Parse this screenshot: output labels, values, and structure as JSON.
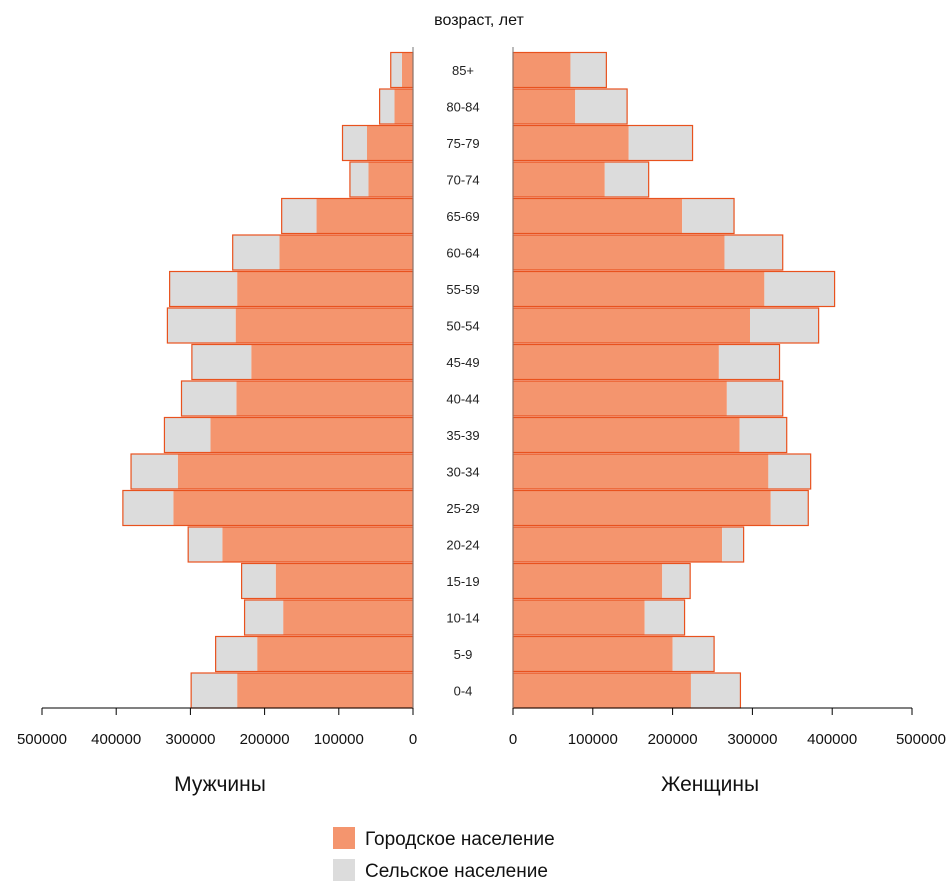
{
  "chart_data": {
    "type": "bar",
    "title": "возраст, лет",
    "categories": [
      "0-4",
      "5-9",
      "10-14",
      "15-19",
      "20-24",
      "25-29",
      "30-34",
      "35-39",
      "40-44",
      "45-49",
      "50-54",
      "55-59",
      "60-64",
      "65-69",
      "70-74",
      "75-79",
      "80-84",
      "85+"
    ],
    "panels": [
      {
        "label": "Мужчины",
        "xlim": [
          500000,
          0
        ],
        "ticks": [
          "500000",
          "400000",
          "300000",
          "200000",
          "100000",
          "0"
        ],
        "series": [
          {
            "name": "Городское население",
            "values": [
              237000,
              210000,
              175000,
              185000,
              257000,
              323000,
              317000,
              273000,
              238000,
              218000,
              239000,
              237000,
              180000,
              130000,
              60000,
              62000,
              25000,
              15000
            ]
          },
          {
            "name": "Сельское население",
            "values": [
              62000,
              56000,
              52000,
              46000,
              46000,
              68000,
              63000,
              62000,
              74000,
              80000,
              92000,
              91000,
              63000,
              47000,
              25000,
              33000,
              20000,
              15000
            ]
          }
        ]
      },
      {
        "label": "Женщины",
        "xlim": [
          0,
          500000
        ],
        "ticks": [
          "0",
          "100000",
          "200000",
          "300000",
          "400000",
          "500000"
        ],
        "series": [
          {
            "name": "Городское население",
            "values": [
              223000,
              200000,
              165000,
              187000,
              262000,
              323000,
              320000,
              284000,
              268000,
              258000,
              297000,
              315000,
              265000,
              212000,
              115000,
              145000,
              78000,
              72000
            ]
          },
          {
            "name": "Сельское население",
            "values": [
              62000,
              52000,
              50000,
              35000,
              27000,
              47000,
              53000,
              59000,
              70000,
              76000,
              86000,
              88000,
              73000,
              65000,
              55000,
              80000,
              65000,
              45000
            ]
          }
        ]
      }
    ],
    "legend": {
      "position": "bottom-center",
      "entries": [
        "Городское население",
        "Сельское население"
      ]
    },
    "colors": {
      "urban": "#f4956e",
      "rural": "#dcdcdc",
      "edge": "#e8521e"
    },
    "grid": false
  }
}
